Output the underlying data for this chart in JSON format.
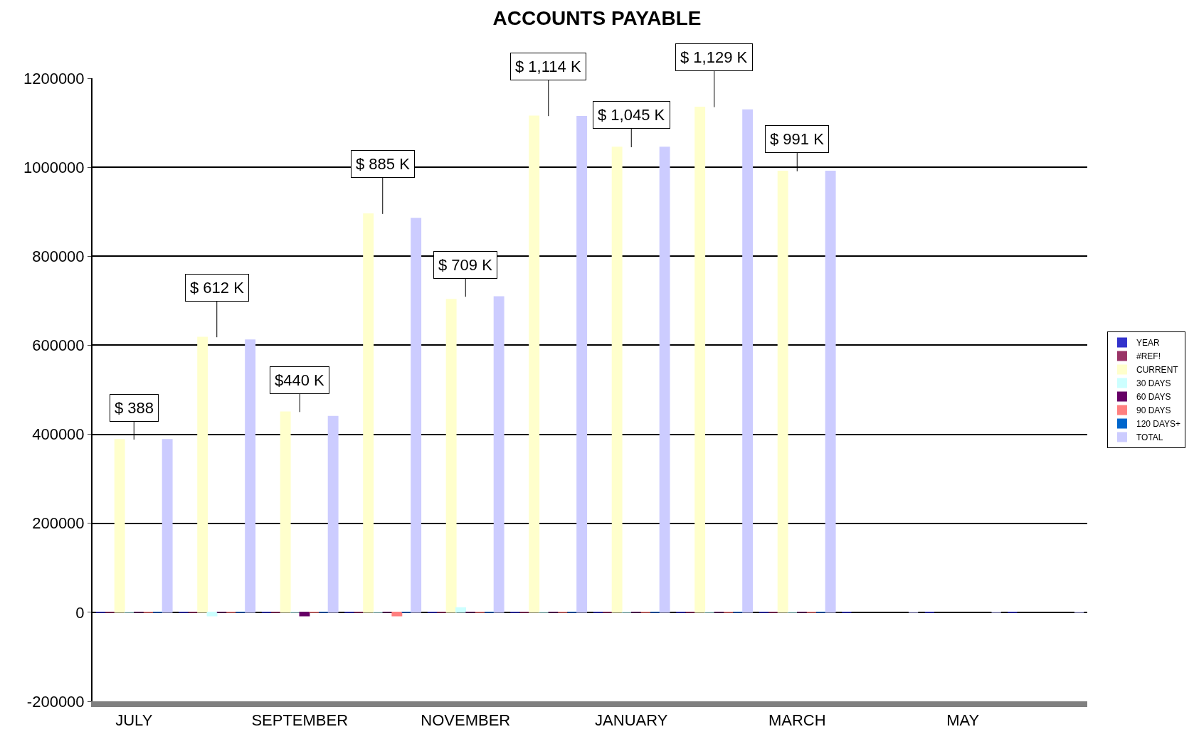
{
  "chart_data": {
    "type": "bar",
    "title": "ACCOUNTS PAYABLE",
    "categories": [
      "JULY",
      null,
      "SEPTEMBER",
      null,
      "NOVEMBER",
      null,
      "JANUARY",
      null,
      "MARCH",
      null,
      "MAY",
      null
    ],
    "series": [
      {
        "name": "YEAR",
        "color": "#3333cc",
        "values": [
          0,
          0,
          0,
          0,
          0,
          0,
          0,
          0,
          0,
          0,
          0,
          0
        ]
      },
      {
        "name": "#REF!",
        "color": "#993366",
        "values": [
          0,
          0,
          0,
          0,
          0,
          0,
          0,
          0,
          0,
          null,
          null,
          null
        ]
      },
      {
        "name": "CURRENT",
        "color": "#ffffcc",
        "values": [
          388000,
          618000,
          450000,
          895000,
          703000,
          1115000,
          1045000,
          1135000,
          991000,
          null,
          null,
          null
        ]
      },
      {
        "name": "30 DAYS",
        "color": "#ccffff",
        "values": [
          0,
          -8000,
          0,
          0,
          10000,
          0,
          0,
          0,
          0,
          null,
          null,
          null
        ]
      },
      {
        "name": "60 DAYS",
        "color": "#660066",
        "values": [
          0,
          0,
          -8000,
          0,
          0,
          0,
          0,
          0,
          0,
          null,
          null,
          null
        ]
      },
      {
        "name": "90 DAYS",
        "color": "#ff8080",
        "values": [
          0,
          0,
          0,
          -8000,
          0,
          0,
          0,
          0,
          0,
          null,
          null,
          null
        ]
      },
      {
        "name": "120 DAYS+",
        "color": "#0066cc",
        "values": [
          0,
          0,
          0,
          0,
          0,
          0,
          0,
          0,
          0,
          null,
          null,
          null
        ]
      },
      {
        "name": "TOTAL",
        "color": "#ccccff",
        "values": [
          388000,
          612000,
          440000,
          885000,
          709000,
          1114000,
          1045000,
          1129000,
          991000,
          0,
          0,
          0
        ]
      }
    ],
    "annotations": [
      "$ 388",
      "$ 612 K",
      "$440 K",
      "$ 885 K",
      "$ 709 K",
      "$ 1,114 K",
      "$ 1,045 K",
      "$ 1,129 K",
      "$ 991 K"
    ],
    "ylim": [
      -200000,
      1200000
    ],
    "yticks": [
      -200000,
      0,
      200000,
      400000,
      600000,
      800000,
      1000000,
      1200000
    ],
    "grid": "y",
    "legend": "right"
  }
}
